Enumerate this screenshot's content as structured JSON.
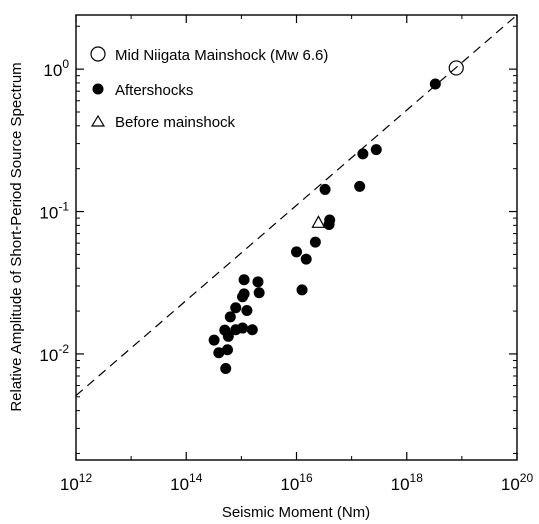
{
  "chart_data": {
    "type": "scatter",
    "xlabel": "Seismic Moment (Nm)",
    "ylabel": "Relative Amplitude of Short-Period Source Spectrum",
    "x_scale": "log",
    "y_scale": "log",
    "xlim": [
      1000000000000.0,
      1e+20
    ],
    "ylim": [
      0.0018,
      2.4
    ],
    "x_ticks": [
      {
        "value": 1000000000000.0,
        "base": "10",
        "exp": "12"
      },
      {
        "value": 100000000000000.0,
        "base": "10",
        "exp": "14"
      },
      {
        "value": 1e+16,
        "base": "10",
        "exp": "16"
      },
      {
        "value": 1e+18,
        "base": "10",
        "exp": "18"
      },
      {
        "value": 1e+20,
        "base": "10",
        "exp": "20"
      }
    ],
    "y_ticks": [
      {
        "value": 0.01,
        "base": "10",
        "exp": "-2"
      },
      {
        "value": 0.1,
        "base": "10",
        "exp": "-1"
      },
      {
        "value": 1,
        "base": "10",
        "exp": "0"
      }
    ],
    "legend_position": "top-left",
    "grid": false,
    "reference_line": {
      "style": "dashed",
      "points": [
        [
          1000000000000.0,
          0.0051
        ],
        [
          1e+20,
          2.4
        ]
      ]
    },
    "series": [
      {
        "name": "Mid Niigata Mainshock (Mw 6.6)",
        "marker": "open-circle",
        "points": [
          [
            7.9e+18,
            1.02
          ]
        ]
      },
      {
        "name": "Aftershocks",
        "marker": "filled-circle",
        "points": [
          [
            320000000000000.0,
            0.0125
          ],
          [
            390000000000000.0,
            0.0102
          ],
          [
            500000000000000.0,
            0.0147
          ],
          [
            520000000000000.0,
            0.0079
          ],
          [
            560000000000000.0,
            0.0107
          ],
          [
            580000000000000.0,
            0.0133
          ],
          [
            630000000000000.0,
            0.0182
          ],
          [
            790000000000000.0,
            0.0211
          ],
          [
            790000000000000.0,
            0.0148
          ],
          [
            1050000000000000.0,
            0.0152
          ],
          [
            1050000000000000.0,
            0.0252
          ],
          [
            1120000000000000.0,
            0.0332
          ],
          [
            1120000000000000.0,
            0.0264
          ],
          [
            1260000000000000.0,
            0.0202
          ],
          [
            1580000000000000.0,
            0.0148
          ],
          [
            2000000000000000.0,
            0.0321
          ],
          [
            2100000000000000.0,
            0.0269
          ],
          [
            1e+16,
            0.0521
          ],
          [
            1.26e+16,
            0.0282
          ],
          [
            1.5e+16,
            0.0463
          ],
          [
            2.2e+16,
            0.061
          ],
          [
            3.3e+16,
            0.143
          ],
          [
            3.9e+16,
            0.0811
          ],
          [
            4e+16,
            0.0872
          ],
          [
            1.4e+17,
            0.1503
          ],
          [
            1.6e+17,
            0.254
          ],
          [
            2.8e+17,
            0.2722
          ],
          [
            3.3e+18,
            0.787
          ]
        ]
      },
      {
        "name": "Before mainshock",
        "marker": "open-triangle",
        "points": [
          [
            2.5e+16,
            0.084
          ]
        ]
      }
    ]
  }
}
